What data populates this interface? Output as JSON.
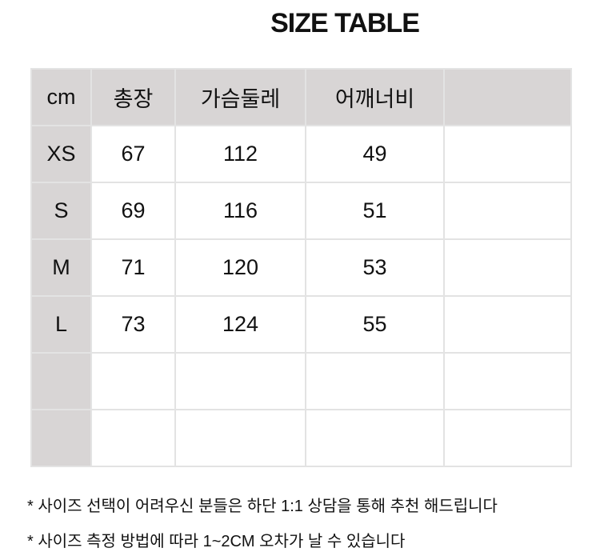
{
  "title": "SIZE TABLE",
  "table": {
    "headers": [
      "cm",
      "총장",
      "가슴둘레",
      "어깨너비",
      ""
    ],
    "rows": [
      [
        "XS",
        "67",
        "112",
        "49",
        ""
      ],
      [
        "S",
        "69",
        "116",
        "51",
        ""
      ],
      [
        "M",
        "71",
        "120",
        "53",
        ""
      ],
      [
        "L",
        "73",
        "124",
        "55",
        ""
      ],
      [
        "",
        "",
        "",
        "",
        ""
      ],
      [
        "",
        "",
        "",
        "",
        ""
      ]
    ]
  },
  "notes": [
    "* 사이즈 선택이 어려우신 분들은 하단 1:1 상담을 통해 추천 해드립니다",
    "* 사이즈 측정 방법에 따라 1~2CM 오차가 날 수 있습니다"
  ],
  "colors": {
    "header_bg": "#d8d5d5",
    "border": "#e3e3e3"
  }
}
